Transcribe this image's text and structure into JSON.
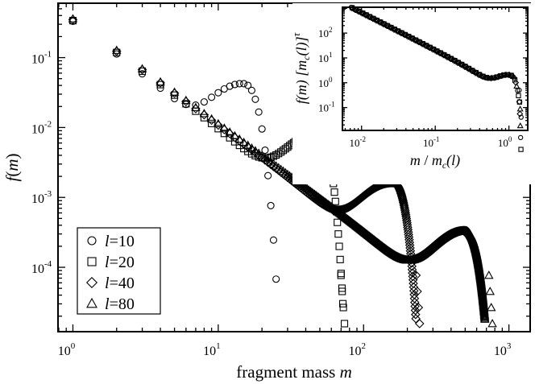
{
  "chart_data": [
    {
      "type": "scatter",
      "name": "main",
      "xscale": "log",
      "yscale": "log",
      "xlim": [
        0.79,
        1400
      ],
      "ylim": [
        1.2e-05,
        0.6
      ],
      "xlabel_prefix": "fragment mass ",
      "xlabel_var": "m",
      "ylabel_var": "f",
      "ylabel_arg": "m",
      "xticks": [
        {
          "base": "10",
          "exp": "0",
          "value": 1
        },
        {
          "base": "10",
          "exp": "1",
          "value": 10
        },
        {
          "base": "10",
          "exp": "2",
          "value": 100
        },
        {
          "base": "10",
          "exp": "3",
          "value": 1000
        }
      ],
      "yticks": [
        {
          "base": "10",
          "exp": "-4",
          "value": 0.0001
        },
        {
          "base": "10",
          "exp": "-3",
          "value": 0.001
        },
        {
          "base": "10",
          "exp": "-2",
          "value": 0.01
        },
        {
          "base": "10",
          "exp": "-1",
          "value": 0.1
        }
      ],
      "legend_position": "bottom-left",
      "series": [
        {
          "name": "l=10",
          "var": "l",
          "value": "=10",
          "marker": "circle",
          "params": {
            "mc": 15,
            "A": 0.34,
            "tau": 1.5,
            "peak": 0.04,
            "cut": 25
          }
        },
        {
          "name": "l=20",
          "var": "l",
          "value": "=20",
          "marker": "square",
          "params": {
            "mc": 49,
            "A": 0.34,
            "tau": 1.5,
            "peak": 0.0078,
            "cut": 73
          }
        },
        {
          "name": "l=40",
          "var": "l",
          "value": "=40",
          "marker": "diamond",
          "params": {
            "mc": 160,
            "A": 0.35,
            "tau": 1.5,
            "peak": 0.00155,
            "cut": 240
          }
        },
        {
          "name": "l=80",
          "var": "l",
          "value": "=80",
          "marker": "triangle",
          "params": {
            "mc": 500,
            "A": 0.36,
            "tau": 1.5,
            "peak": 0.00032,
            "cut": 760
          }
        }
      ]
    },
    {
      "type": "scatter",
      "name": "inset",
      "xscale": "log",
      "yscale": "log",
      "xlim": [
        0.0055,
        1.8
      ],
      "ylim": [
        0.012,
        1100
      ],
      "xlabel_var": "m",
      "xlabel_text": " / ",
      "xlabel_mc": "m",
      "xlabel_mc_sub": "c",
      "xlabel_mc_arg": "(l)",
      "ylabel_text": "f(m) [m",
      "ylabel_sub": "c",
      "ylabel_tail": "(l)]",
      "ylabel_exp": "τ",
      "xticks": [
        {
          "base": "10",
          "exp": "-2",
          "value": 0.01
        },
        {
          "base": "10",
          "exp": "-1",
          "value": 0.1
        },
        {
          "base": "10",
          "exp": "0",
          "value": 1
        }
      ],
      "yticks": [
        {
          "base": "10",
          "exp": "-1",
          "value": 0.1
        },
        {
          "base": "10",
          "exp": "0",
          "value": 1
        },
        {
          "base": "10",
          "exp": "1",
          "value": 10
        },
        {
          "base": "10",
          "exp": "2",
          "value": 100
        }
      ],
      "collapse": {
        "A": 0.34,
        "tau": 1.5,
        "peak_x": 1.0,
        "peak_y": 1.8,
        "min_y": 0.6,
        "cut_x": 1.5
      }
    }
  ]
}
